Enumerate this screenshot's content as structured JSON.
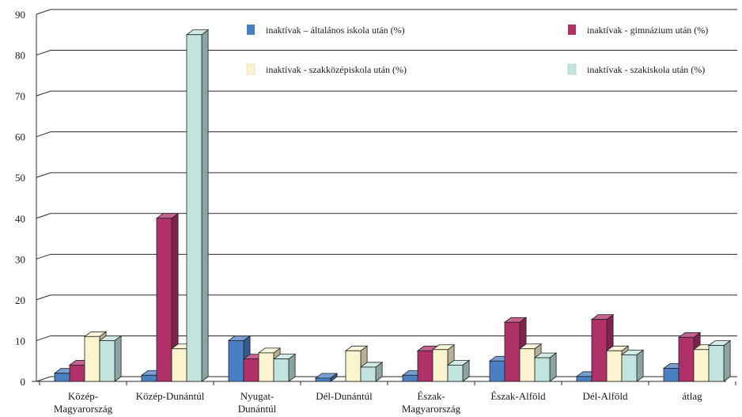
{
  "chart_data": {
    "type": "bar",
    "style": "3d-clustered-column",
    "ylim": [
      0,
      90
    ],
    "yticks": [
      0,
      10,
      20,
      30,
      40,
      50,
      60,
      70,
      80,
      90
    ],
    "grid": true,
    "legend_position": "top-right",
    "categories": [
      [
        "Közép-",
        "Magyarország"
      ],
      [
        "Közép-Dunántúl"
      ],
      [
        "Nyugat-",
        "Dunántúl"
      ],
      [
        "Dél-Dunántúl"
      ],
      [
        "Észak-",
        "Magyarország"
      ],
      [
        "Észak-Alföld"
      ],
      [
        "Dél-Alföld"
      ],
      [
        "átlag"
      ]
    ],
    "series": [
      {
        "name": "inaktívak – általános iskola után (%)",
        "color": "#4a7fc4",
        "values": [
          2,
          1.5,
          10,
          0.8,
          1.5,
          5,
          1.2,
          3.2
        ]
      },
      {
        "name": "inaktívak  - gimnázium után (%)",
        "color": "#b03068",
        "values": [
          4,
          40,
          5.5,
          0,
          7.5,
          14.5,
          15.2,
          10.8
        ]
      },
      {
        "name": "inaktívak - szakközépiskola után (%)",
        "color": "#fbf4cf",
        "values": [
          11,
          8,
          7,
          7.5,
          7.8,
          8,
          7.5,
          7.8
        ]
      },
      {
        "name": "inaktívak - szakiskola után (%)",
        "color": "#c2e4df",
        "values": [
          10,
          85,
          5.5,
          3.5,
          4,
          5.8,
          6.5,
          8.8
        ]
      }
    ]
  }
}
